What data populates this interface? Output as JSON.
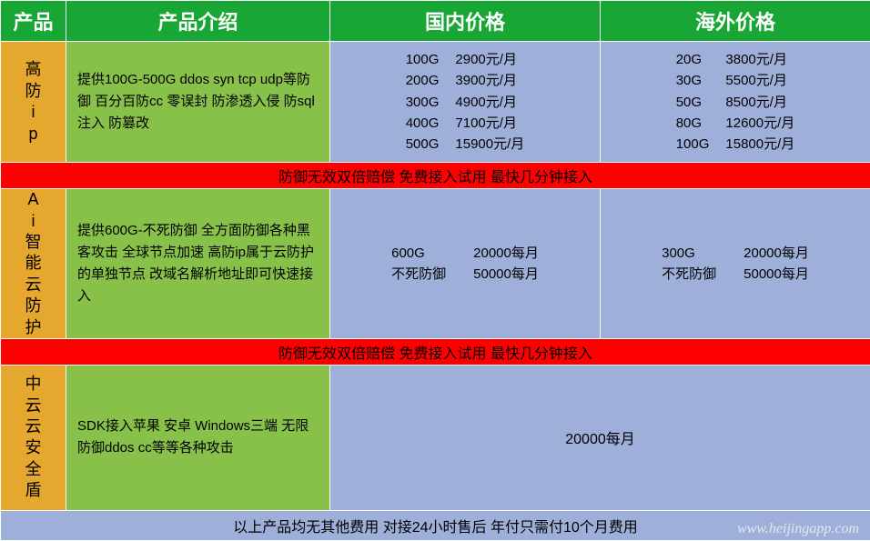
{
  "colors": {
    "header_bg": "#18a734",
    "header_text": "#ffffff",
    "name_bg": "#e6a72e",
    "desc_bg": "#88c149",
    "price_bg": "#9eb0d9",
    "banner_bg": "#ff0000",
    "border": "#ffffff"
  },
  "columns": {
    "product": "产品",
    "intro": "产品介绍",
    "domestic": "国内价格",
    "overseas": "海外价格"
  },
  "rows": [
    {
      "name": "高防ip",
      "desc": "提供100G-500G ddos syn tcp udp等防御 百分百防cc 零误封 防渗透入侵 防sql注入 防篡改",
      "domestic": [
        {
          "spec": "100G",
          "price": "2900元/月"
        },
        {
          "spec": "200G",
          "price": "3900元/月"
        },
        {
          "spec": "300G",
          "price": "4900元/月"
        },
        {
          "spec": "400G",
          "price": "7100元/月"
        },
        {
          "spec": "500G",
          "price": "15900元/月"
        }
      ],
      "overseas": [
        {
          "spec": "20G",
          "price": "3800元/月"
        },
        {
          "spec": "30G",
          "price": "5500元/月"
        },
        {
          "spec": "50G",
          "price": "8500元/月"
        },
        {
          "spec": "80G",
          "price": "12600元/月"
        },
        {
          "spec": "100G",
          "price": "15800元/月"
        }
      ]
    },
    {
      "name": "Ai智能云防护",
      "desc": "提供600G-不死防御 全方面防御各种黑客攻击 全球节点加速 高防ip属于云防护的单独节点 改域名解析地址即可快速接入",
      "domestic": [
        {
          "spec": "600G",
          "price": "20000每月"
        },
        {
          "spec": "不死防御",
          "price": "50000每月"
        }
      ],
      "overseas": [
        {
          "spec": "300G",
          "price": "20000每月"
        },
        {
          "spec": "不死防御",
          "price": "50000每月"
        }
      ]
    },
    {
      "name": "中云云安全盾",
      "desc": "SDK接入苹果 安卓 Windows三端 无限防御ddos cc等等各种攻击",
      "merged_price": "20000每月"
    }
  ],
  "banner": "防御无效双倍赔偿 免费接入试用 最快几分钟接入",
  "footer": "以上产品均无其他费用 对接24小时售后 年付只需付10个月费用",
  "watermark": "www.heijingapp.com"
}
